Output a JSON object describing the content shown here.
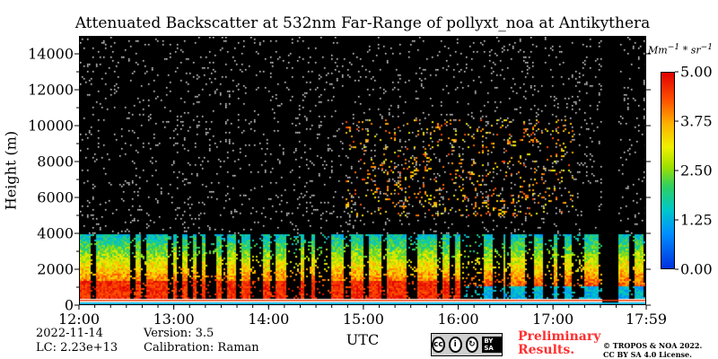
{
  "chart_data": {
    "type": "heatmap",
    "title": "Attenuated Backscatter at 532nm Far-Range of pollyxt_noa at Antikythera",
    "xlabel": "UTC",
    "ylabel": "Height (m)",
    "x_ticks": [
      "12:00",
      "13:00",
      "14:00",
      "15:00",
      "16:00",
      "17:00",
      "17:59"
    ],
    "x_range_hours": [
      12.0,
      17.983
    ],
    "y_ticks": [
      0,
      2000,
      4000,
      6000,
      8000,
      10000,
      12000,
      14000
    ],
    "ylim": [
      0,
      15000
    ],
    "colorbar": {
      "unit": "Mm^-1 * sr^-1",
      "ticks": [
        "5.00",
        "3.75",
        "2.50",
        "1.25",
        "0.00"
      ],
      "range": [
        0,
        5
      ],
      "colormap": "jet"
    },
    "features": [
      {
        "name": "aerosol layer",
        "height_range_m": [
          500,
          4000
        ],
        "value_range": [
          1.5,
          5.0
        ]
      },
      {
        "name": "near-surface saturation",
        "height_range_m": [
          0,
          300
        ],
        "value": 5.0
      },
      {
        "name": "thin cloud layer",
        "time_range_hours": [
          14.8,
          17.2
        ],
        "height_range_m": [
          5000,
          10500
        ],
        "value_range": [
          3.0,
          4.5
        ]
      },
      {
        "name": "data gap",
        "time_range_hours": [
          17.5,
          17.68
        ],
        "height_range_m": [
          0,
          15000
        ]
      }
    ]
  },
  "info": {
    "date": "2022-11-14",
    "lc": "LC: 2.23e+13",
    "version": "Version: 3.5",
    "calibration": "Calibration: Raman"
  },
  "footer": {
    "cc_label": "BY SA",
    "preliminary_line1": "Preliminary",
    "preliminary_line2": "Results.",
    "copyright_line1": "© TROPOS & NOA 2022.",
    "copyright_line2": "CC BY SA 4.0 License."
  }
}
